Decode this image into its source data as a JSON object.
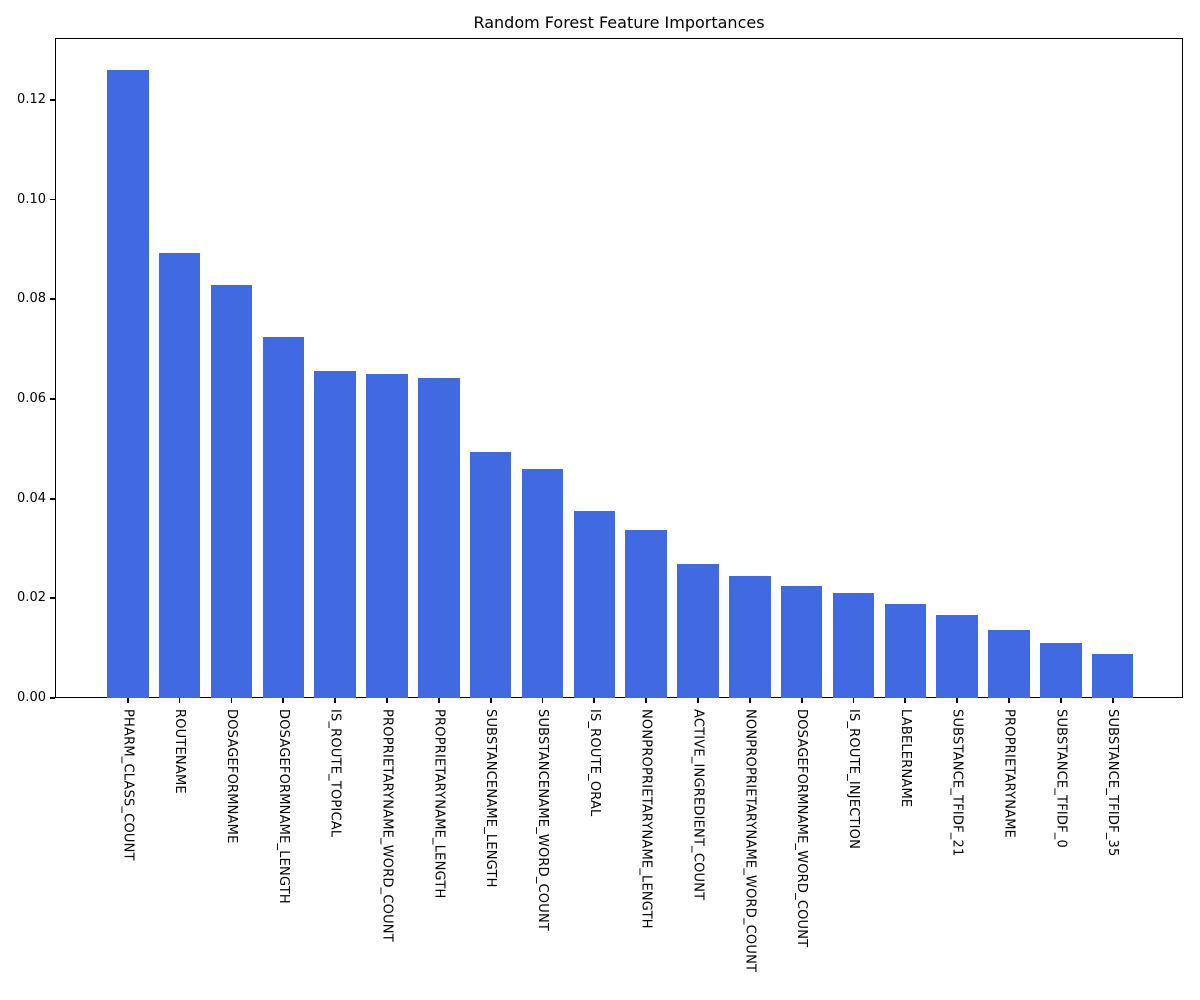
{
  "chart_data": {
    "type": "bar",
    "title": "Random Forest Feature Importances",
    "categories": [
      "PHARM_CLASS_COUNT",
      "ROUTENAME",
      "DOSAGEFORMNAME",
      "DOSAGEFORMNAME_LENGTH",
      "IS_ROUTE_TOPICAL",
      "PROPRIETARYNAME_WORD_COUNT",
      "PROPRIETARYNAME_LENGTH",
      "SUBSTANCENAME_LENGTH",
      "SUBSTANCENAME_WORD_COUNT",
      "IS_ROUTE_ORAL",
      "NONPROPRIETARYNAME_LENGTH",
      "ACTIVE_INGREDIENT_COUNT",
      "NONPROPRIETARYNAME_WORD_COUNT",
      "DOSAGEFORMNAME_WORD_COUNT",
      "IS_ROUTE_INJECTION",
      "LABELERNAME",
      "SUBSTANCE_TFIDF_21",
      "PROPRIETARYNAME",
      "SUBSTANCE_TFIDF_0",
      "SUBSTANCE_TFIDF_35"
    ],
    "values": [
      0.126,
      0.0893,
      0.0829,
      0.0724,
      0.0655,
      0.065,
      0.0642,
      0.0494,
      0.046,
      0.0375,
      0.0338,
      0.0268,
      0.0244,
      0.0224,
      0.021,
      0.0188,
      0.0166,
      0.0136,
      0.011,
      0.0088
    ],
    "xlabel": "",
    "ylabel": "",
    "ylim": [
      0,
      0.1324
    ],
    "yticks": [
      "0.00",
      "0.02",
      "0.04",
      "0.06",
      "0.08",
      "0.10",
      "0.12"
    ],
    "x_tick_rotation": "vertical",
    "grid": false,
    "legend": "none",
    "bar_color": "#4169E1",
    "text_color": "#000000",
    "background_color": "#FFFFFF"
  }
}
